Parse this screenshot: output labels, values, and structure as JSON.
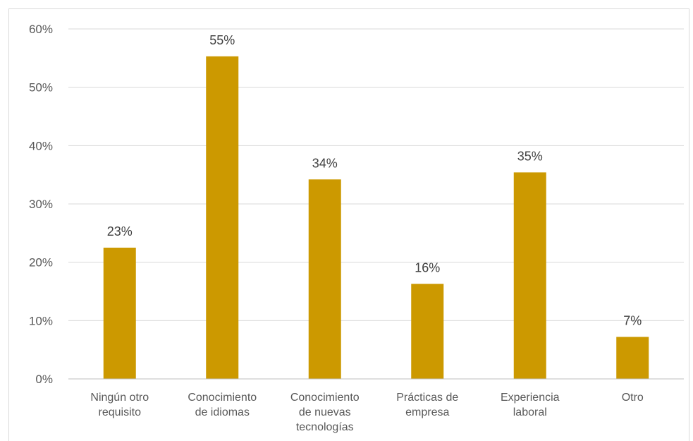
{
  "chart_data": {
    "type": "bar",
    "categories": [
      [
        "Ningún otro",
        "requisito"
      ],
      [
        "Conocimiento",
        "de idiomas"
      ],
      [
        "Conocimiento",
        "de nuevas",
        "tecnologías"
      ],
      [
        "Prácticas de",
        "empresa"
      ],
      [
        "Experiencia",
        "laboral"
      ],
      [
        "Otro"
      ]
    ],
    "values": [
      22.5,
      55.3,
      34.2,
      16.3,
      35.4,
      7.2
    ],
    "data_labels": [
      "23%",
      "55%",
      "34%",
      "16%",
      "35%",
      "7%"
    ],
    "yticks": [
      0,
      10,
      20,
      30,
      40,
      50,
      60
    ],
    "ytick_labels": [
      "0%",
      "10%",
      "20%",
      "30%",
      "40%",
      "50%",
      "60%"
    ],
    "ylim": [
      0,
      60
    ],
    "grid": true,
    "legend": "none",
    "title": "",
    "xlabel": "",
    "ylabel": "",
    "colors": {
      "bar": "#CC9900",
      "gridline": "#D9D9D9",
      "axis": "#BFBFBF",
      "text": "#595959"
    }
  }
}
